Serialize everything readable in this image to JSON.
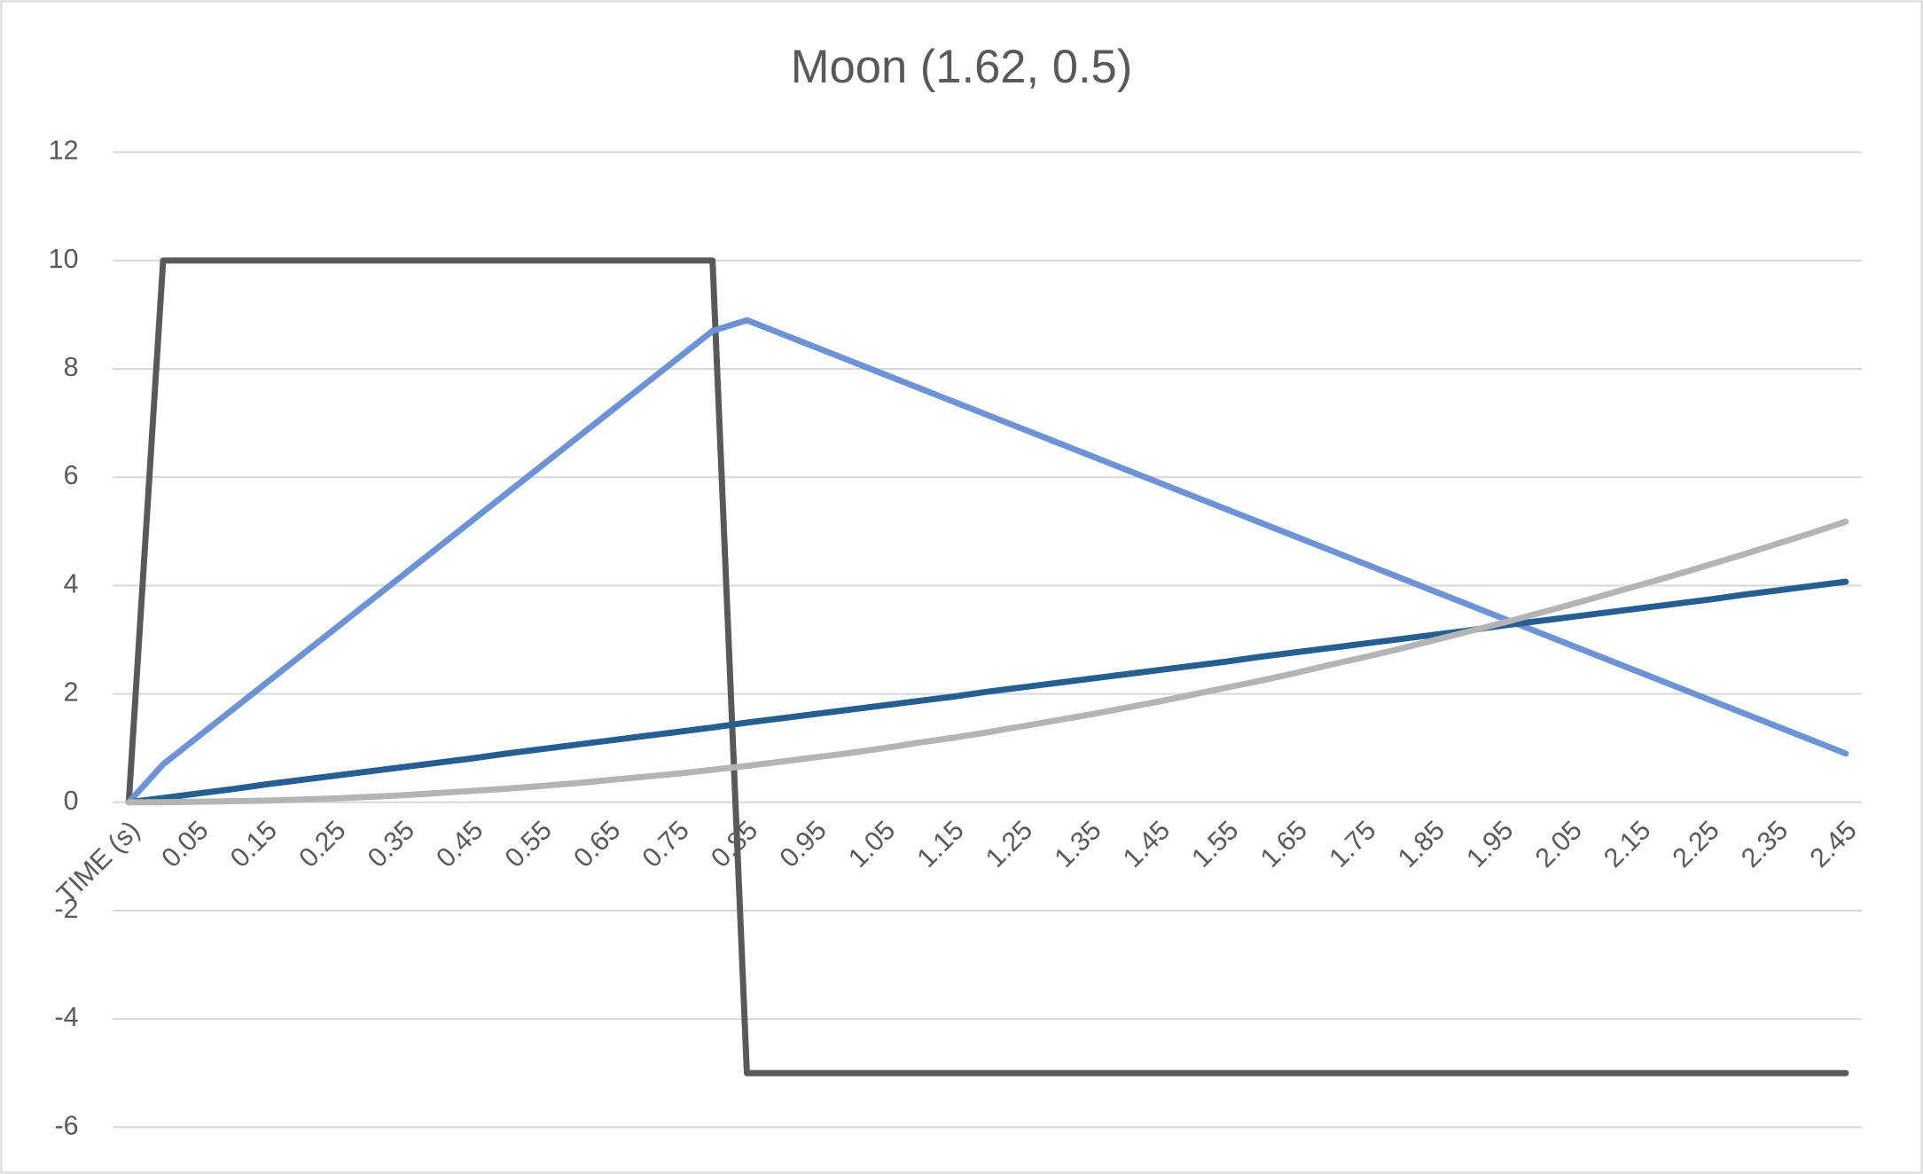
{
  "chart_data": {
    "type": "line",
    "title": "Moon (1.62, 0.5)",
    "categories": [
      "TIME (s)",
      null,
      "0.05",
      null,
      "0.15",
      null,
      "0.25",
      null,
      "0.35",
      null,
      "0.45",
      null,
      "0.55",
      null,
      "0.65",
      null,
      "0.75",
      null,
      "0.85",
      null,
      "0.95",
      null,
      "1.05",
      null,
      "1.15",
      null,
      "1.25",
      null,
      "1.35",
      null,
      "1.45",
      null,
      "1.55",
      null,
      "1.65",
      null,
      "1.75",
      null,
      "1.85",
      null,
      "1.95",
      null,
      "2.05",
      null,
      "2.15",
      null,
      "2.25",
      null,
      "2.35",
      null,
      "2.45"
    ],
    "series": [
      {
        "color": "#595959",
        "values": [
          0,
          10,
          10,
          10,
          10,
          10,
          10,
          10,
          10,
          10,
          10,
          10,
          10,
          10,
          10,
          10,
          10,
          10,
          -5,
          -5,
          -5,
          -5,
          -5,
          -5,
          -5,
          -5,
          -5,
          -5,
          -5,
          -5,
          -5,
          -5,
          -5,
          -5,
          -5,
          -5,
          -5,
          -5,
          -5,
          -5,
          -5,
          -5,
          -5,
          -5,
          -5,
          -5,
          -5,
          -5,
          -5,
          -5,
          -5
        ]
      },
      {
        "color": "#6b93d6",
        "values": [
          0,
          0.7,
          1.2,
          1.7,
          2.2,
          2.7,
          3.2,
          3.7,
          4.2,
          4.7,
          5.2,
          5.7,
          6.2,
          6.7,
          7.2,
          7.7,
          8.2,
          8.7,
          8.9,
          8.65,
          8.4,
          8.15,
          7.9,
          7.65,
          7.4,
          7.15,
          6.9,
          6.65,
          6.4,
          6.15,
          5.9,
          5.65,
          5.4,
          5.15,
          4.9,
          4.65,
          4.4,
          4.15,
          3.9,
          3.65,
          3.4,
          3.15,
          2.9,
          2.65,
          2.4,
          2.15,
          1.9,
          1.65,
          1.4,
          1.15,
          0.9
        ]
      },
      {
        "color": "#255e91",
        "values": [
          0,
          0.08,
          0.16,
          0.24,
          0.33,
          0.41,
          0.49,
          0.57,
          0.65,
          0.73,
          0.81,
          0.9,
          0.98,
          1.06,
          1.14,
          1.22,
          1.3,
          1.38,
          1.47,
          1.55,
          1.63,
          1.71,
          1.79,
          1.87,
          1.95,
          2.04,
          2.12,
          2.2,
          2.28,
          2.36,
          2.44,
          2.52,
          2.6,
          2.69,
          2.77,
          2.85,
          2.93,
          3.01,
          3.09,
          3.17,
          3.26,
          3.34,
          3.42,
          3.5,
          3.58,
          3.66,
          3.74,
          3.83,
          3.91,
          3.99,
          4.07
        ]
      },
      {
        "color": "#b4b4b4",
        "values": [
          0,
          0,
          0.01,
          0.02,
          0.03,
          0.05,
          0.07,
          0.1,
          0.13,
          0.17,
          0.21,
          0.25,
          0.3,
          0.35,
          0.41,
          0.47,
          0.53,
          0.6,
          0.67,
          0.75,
          0.83,
          0.91,
          1,
          1.1,
          1.19,
          1.29,
          1.4,
          1.51,
          1.62,
          1.74,
          1.86,
          1.99,
          2.12,
          2.25,
          2.39,
          2.54,
          2.68,
          2.83,
          2.99,
          3.15,
          3.31,
          3.48,
          3.65,
          3.83,
          4.01,
          4.19,
          4.38,
          4.57,
          4.77,
          4.97,
          5.18
        ]
      }
    ],
    "ylim": [
      -6,
      12
    ],
    "yticks": [
      -6,
      -4,
      -2,
      0,
      2,
      4,
      6,
      8,
      10,
      12
    ],
    "grid": true
  }
}
